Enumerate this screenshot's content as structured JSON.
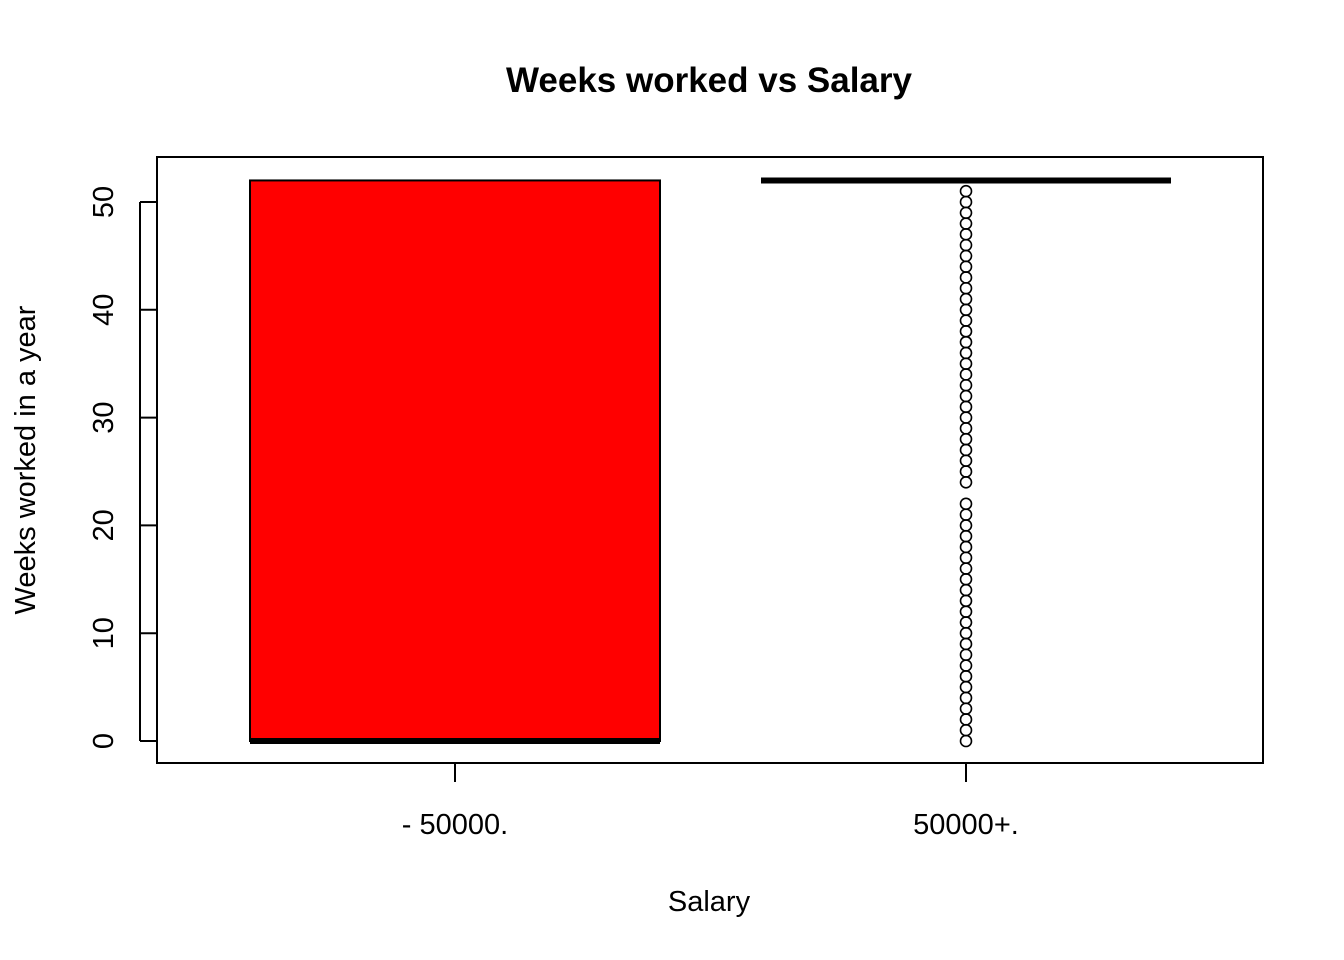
{
  "chart_data": {
    "type": "boxplot",
    "title": "Weeks worked vs Salary",
    "xlabel": "Salary",
    "ylabel": "Weeks worked in a year",
    "categories": [
      "- 50000.",
      "50000+."
    ],
    "ylim": [
      -2,
      54
    ],
    "yticks": [
      0,
      10,
      20,
      30,
      40,
      50
    ],
    "ytick_labels": [
      "0",
      "10",
      "20",
      "30",
      "40",
      "50"
    ],
    "grid": false,
    "legend": "none",
    "boxes": [
      {
        "category": "- 50000.",
        "min": 0,
        "q1": 0,
        "median": 0,
        "q3": 52,
        "max": 52,
        "fill": "#ff0000",
        "outliers": []
      },
      {
        "category": "50000+.",
        "min": 52,
        "q1": 52,
        "median": 52,
        "q3": 52,
        "max": 52,
        "fill": "#ff0000",
        "outliers": [
          0,
          1,
          2,
          3,
          4,
          5,
          6,
          7,
          8,
          9,
          10,
          11,
          12,
          13,
          14,
          15,
          16,
          17,
          18,
          19,
          20,
          21,
          22,
          24,
          25,
          26,
          27,
          28,
          29,
          30,
          31,
          32,
          33,
          34,
          35,
          36,
          37,
          38,
          39,
          40,
          41,
          42,
          43,
          44,
          45,
          46,
          47,
          48,
          49,
          50,
          51
        ]
      }
    ]
  }
}
